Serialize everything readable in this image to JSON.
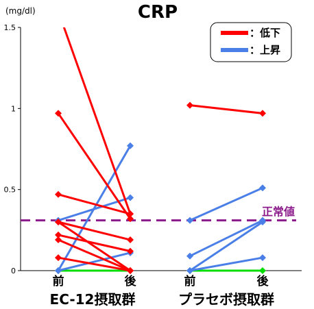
{
  "chart_data": {
    "type": "line",
    "title": "CRP",
    "ylabel": "(mg/dl)",
    "ylim": [
      0,
      1.5
    ],
    "yticks": [
      {
        "value": 0,
        "label": "0"
      },
      {
        "value": 0.5,
        "label": "0.5"
      },
      {
        "value": 1,
        "label": "1"
      },
      {
        "value": 1.5,
        "label": "1.5"
      }
    ],
    "groups": [
      {
        "name": "EC-12摂取群",
        "categories": [
          "前",
          "後"
        ]
      },
      {
        "name": "プラセボ摂取群",
        "categories": [
          "前",
          "後"
        ]
      }
    ],
    "legend": {
      "placement": "top-right",
      "items": [
        {
          "label": "：低下",
          "color": "#ff0000"
        },
        {
          "label": "：上昇",
          "color": "#4a7fe8"
        }
      ]
    },
    "normal_line": {
      "label": "正常値",
      "value": 0.31,
      "color": "#8b1a8b"
    },
    "colors": {
      "decrease": "#ff0000",
      "increase": "#4a7fe8",
      "unchanged": "#00dd00"
    },
    "series": [
      {
        "group": 0,
        "before": 1.6,
        "after": 0.35,
        "trend": "decrease"
      },
      {
        "group": 0,
        "before": 0.97,
        "after": 0.32,
        "trend": "decrease"
      },
      {
        "group": 0,
        "before": 0.47,
        "after": 0.35,
        "trend": "decrease"
      },
      {
        "group": 0,
        "before": 0.31,
        "after": 0.45,
        "trend": "increase"
      },
      {
        "group": 0,
        "before": 0.3,
        "after": 0.19,
        "trend": "decrease"
      },
      {
        "group": 0,
        "before": 0.3,
        "after": 0.0,
        "trend": "decrease"
      },
      {
        "group": 0,
        "before": 0.22,
        "after": 0.12,
        "trend": "decrease"
      },
      {
        "group": 0,
        "before": 0.19,
        "after": 0.0,
        "trend": "decrease"
      },
      {
        "group": 0,
        "before": 0.08,
        "after": 0.0,
        "trend": "decrease"
      },
      {
        "group": 0,
        "before": 0.0,
        "after": 0.77,
        "trend": "increase"
      },
      {
        "group": 0,
        "before": 0.0,
        "after": 0.11,
        "trend": "increase"
      },
      {
        "group": 0,
        "before": 0.0,
        "after": 0.0,
        "trend": "unchanged"
      },
      {
        "group": 1,
        "before": 1.02,
        "after": 0.97,
        "trend": "decrease"
      },
      {
        "group": 1,
        "before": 0.31,
        "after": 0.51,
        "trend": "increase"
      },
      {
        "group": 1,
        "before": 0.09,
        "after": 0.31,
        "trend": "increase"
      },
      {
        "group": 1,
        "before": 0.0,
        "after": 0.3,
        "trend": "increase"
      },
      {
        "group": 1,
        "before": 0.0,
        "after": 0.08,
        "trend": "increase"
      },
      {
        "group": 1,
        "before": 0.0,
        "after": 0.0,
        "trend": "unchanged"
      }
    ]
  }
}
